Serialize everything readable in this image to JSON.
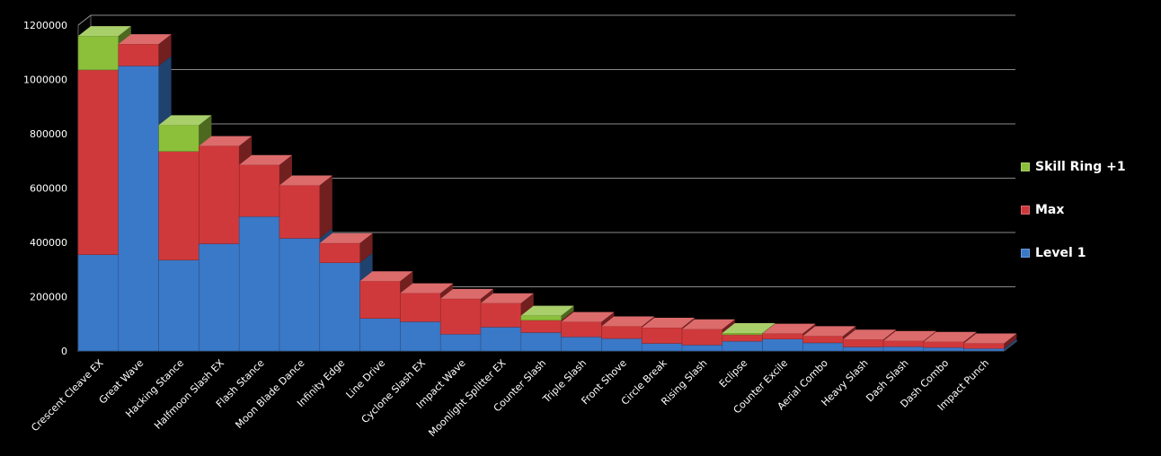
{
  "chart_data": {
    "type": "bar",
    "stacked": true,
    "view": "3d",
    "title": "",
    "xlabel": "",
    "ylabel": "",
    "ylim": [
      0,
      1200000
    ],
    "yticks": [
      0,
      200000,
      400000,
      600000,
      800000,
      1000000,
      1200000
    ],
    "grid": true,
    "legend_position": "right",
    "categories": [
      "Crescent Cleave EX",
      "Great Wave",
      "Hacking Stance",
      "Halfmoon Slash EX",
      "Flash Stance",
      "Moon Blade Dance",
      "Infinity Edge",
      "Line Drive",
      "Cyclone Slash EX",
      "Impact Wave",
      "Moonlight Splitter EX",
      "Counter Slash",
      "Triple Slash",
      "Front Shove",
      "Circle Break",
      "Rising Slash",
      "Eclipse",
      "Counter Excile",
      "Aerial Combo",
      "Heavy Slash",
      "Dash Slash",
      "Dash Combo",
      "Impact Punch"
    ],
    "series": [
      {
        "name": "Level 1",
        "color": "#3a78c8",
        "values": [
          355000,
          1050000,
          335000,
          395000,
          495000,
          415000,
          325000,
          120000,
          108000,
          62000,
          88000,
          68000,
          52000,
          46000,
          28000,
          22000,
          36000,
          44000,
          30000,
          15000,
          16000,
          13000,
          9000
        ]
      },
      {
        "name": "Max",
        "color": "#d0393b",
        "values": [
          680000,
          80000,
          400000,
          360000,
          190000,
          195000,
          72000,
          137000,
          105000,
          130000,
          88000,
          45000,
          55000,
          45000,
          58000,
          58000,
          24000,
          20000,
          25000,
          27000,
          21000,
          21000,
          19000
        ]
      },
      {
        "name": "Skill Ring +1",
        "color": "#8cbf3a",
        "values": [
          125000,
          0,
          97000,
          0,
          0,
          0,
          0,
          0,
          0,
          0,
          0,
          17000,
          0,
          0,
          0,
          0,
          6000,
          0,
          0,
          0,
          0,
          0,
          0
        ]
      }
    ]
  },
  "legend": [
    {
      "label": "Skill Ring +1",
      "color": "#8cbf3a"
    },
    {
      "label": "Max",
      "color": "#d0393b"
    },
    {
      "label": "Level 1",
      "color": "#3a78c8"
    }
  ]
}
